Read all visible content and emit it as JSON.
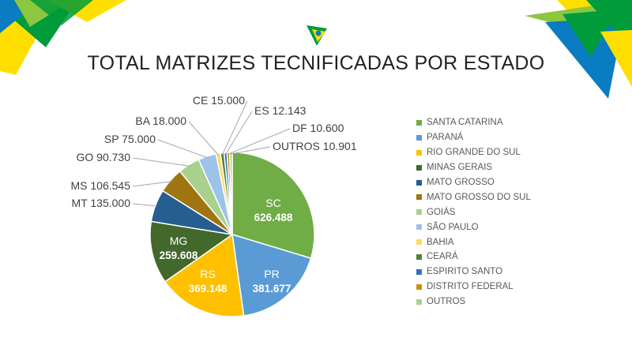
{
  "title": "TOTAL MATRIZES TECNIFICADAS POR ESTADO",
  "decoration": {
    "icon": "brazil-flag-logo-icon",
    "colors": [
      "#009b3a",
      "#fedf00",
      "#0a7cc2",
      "#8dc63f"
    ]
  },
  "chart_data": {
    "type": "pie",
    "title": "TOTAL MATRIZES TECNIFICADAS POR ESTADO",
    "legend_position": "right",
    "slices": [
      {
        "legend": "SANTA CATARINA",
        "abbr": "SC",
        "value": 626488,
        "label": "626.488",
        "color": "#70ad47"
      },
      {
        "legend": "PARANÁ",
        "abbr": "PR",
        "value": 381677,
        "label": "381.677",
        "color": "#5b9bd5"
      },
      {
        "legend": "RIO GRANDE DO SUL",
        "abbr": "RS",
        "value": 369148,
        "label": "369.148",
        "color": "#ffc000"
      },
      {
        "legend": "MINAS GERAIS",
        "abbr": "MG",
        "value": 259608,
        "label": "259.608",
        "color": "#43682b"
      },
      {
        "legend": "MATO GROSSO",
        "abbr": "MT",
        "value": 135000,
        "label": "135.000",
        "color": "#255e91"
      },
      {
        "legend": "MATO GROSSO DO SUL",
        "abbr": "MS",
        "value": 106545,
        "label": "106.545",
        "color": "#9e7510"
      },
      {
        "legend": "GOIÁS",
        "abbr": "GO",
        "value": 90730,
        "label": "90.730",
        "color": "#a9d18e"
      },
      {
        "legend": "SÃO PAULO",
        "abbr": "SP",
        "value": 75000,
        "label": "75.000",
        "color": "#9dc3e6"
      },
      {
        "legend": "BAHIA",
        "abbr": "BA",
        "value": 18000,
        "label": "18.000",
        "color": "#ffd966"
      },
      {
        "legend": "CEARÁ",
        "abbr": "CE",
        "value": 15000,
        "label": "15.000",
        "color": "#548235"
      },
      {
        "legend": "ESPIRITO SANTO",
        "abbr": "ES",
        "value": 12143,
        "label": "12.143",
        "color": "#2e75b6"
      },
      {
        "legend": "DISTRITO FEDERAL",
        "abbr": "DF",
        "value": 10600,
        "label": "10.600",
        "color": "#c9910c"
      },
      {
        "legend": "OUTROS",
        "abbr": "OUTROS",
        "value": 10901,
        "label": "10.901",
        "color": "#a9d18e"
      }
    ]
  }
}
